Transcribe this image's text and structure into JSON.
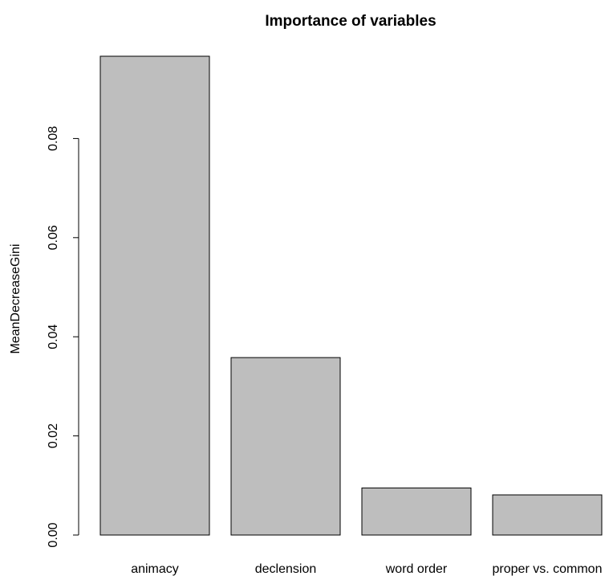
{
  "chart_data": {
    "type": "bar",
    "title": "Importance of variables",
    "xlabel": "",
    "ylabel": "MeanDecreaseGini",
    "categories": [
      "animacy",
      "declension",
      "word order",
      "proper vs. common"
    ],
    "values": [
      0.0966,
      0.0358,
      0.0095,
      0.0081
    ],
    "yticks": [
      0.0,
      0.02,
      0.04,
      0.06,
      0.08
    ],
    "ytick_labels": [
      "0.00",
      "0.02",
      "0.04",
      "0.06",
      "0.08"
    ],
    "ylim": [
      0,
      0.0966
    ],
    "bar_color": "#bebebe",
    "grid": false
  }
}
